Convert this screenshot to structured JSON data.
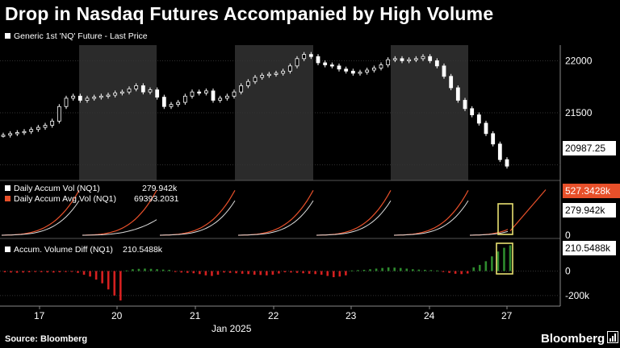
{
  "title": "Drop in Nasdaq Futures Accompanied by High Volume",
  "source": "Source: Bloomberg",
  "brand": "Bloomberg",
  "colors": {
    "background": "#000000",
    "shade": "#2b2b2b",
    "red_line": "#e8502a",
    "up_bar": "#2e8b2e",
    "down_bar": "#d42020",
    "highlight": "#e8e070"
  },
  "x_axis": {
    "ticks": [
      "17",
      "20",
      "21",
      "22",
      "23",
      "24",
      "27"
    ],
    "month_label": "Jan 2025"
  },
  "chart_data": [
    {
      "type": "candlestick",
      "legend": "Generic 1st 'NQ' Future - Last Price",
      "y_ticks": [
        "22000",
        "21500"
      ],
      "ylim": [
        20850,
        22150
      ],
      "last_value_label": "20987.25",
      "shaded_days": [
        "20",
        "22",
        "24"
      ],
      "close_series": [
        21285,
        21300,
        21310,
        21320,
        21340,
        21360,
        21380,
        21420,
        21560,
        21640,
        21660,
        21620,
        21640,
        21650,
        21660,
        21670,
        21690,
        21700,
        21730,
        21760,
        21700,
        21720,
        21650,
        21560,
        21580,
        21600,
        21660,
        21700,
        21690,
        21710,
        21620,
        21640,
        21660,
        21700,
        21760,
        21800,
        21840,
        21860,
        21870,
        21880,
        21900,
        21950,
        22020,
        22060,
        22040,
        21980,
        21960,
        21950,
        21920,
        21900,
        21880,
        21890,
        21910,
        21930,
        21960,
        22010,
        22020,
        22000,
        22010,
        22020,
        22040,
        22000,
        21950,
        21850,
        21740,
        21620,
        21540,
        21480,
        21400,
        21300,
        21200,
        21050,
        20987.25
      ]
    },
    {
      "type": "line",
      "series": [
        {
          "name": "Daily Accum Vol (NQ1)",
          "value_label": "279.942k"
        },
        {
          "name": "Daily Accum Avg Vol (NQ1)",
          "value_label": "69393.2031"
        }
      ],
      "y_ticks": [
        "0"
      ],
      "right_labels": [
        "527.3428k",
        "279.942k"
      ],
      "ylim": [
        0,
        560000
      ]
    },
    {
      "type": "bar",
      "legend": "Accum. Volume Diff (NQ1)",
      "legend_value": "210.5488k",
      "y_ticks": [
        "0",
        "-200k"
      ],
      "right_label": "210.5488k",
      "ylim": [
        -260000,
        240000
      ],
      "values": [
        -10000,
        -12000,
        -14000,
        -12000,
        -10000,
        -8000,
        -9000,
        -11000,
        -12000,
        -10000,
        -8000,
        -7000,
        -15000,
        -30000,
        -45000,
        -70000,
        -100000,
        -150000,
        -200000,
        -240000,
        5000,
        15000,
        18000,
        20000,
        18000,
        15000,
        12000,
        10000,
        -8000,
        -12000,
        -15000,
        -18000,
        -25000,
        -35000,
        -40000,
        -30000,
        -12000,
        -15000,
        -18000,
        -22000,
        -25000,
        -30000,
        -32000,
        -35000,
        -30000,
        -20000,
        -10000,
        -12000,
        -15000,
        -18000,
        -22000,
        -25000,
        -30000,
        -40000,
        -50000,
        -45000,
        -35000,
        5000,
        8000,
        10000,
        15000,
        20000,
        25000,
        30000,
        28000,
        25000,
        20000,
        15000,
        12000,
        10000,
        8000,
        5000,
        -8000,
        -15000,
        -22000,
        -25000,
        -20000,
        30000,
        50000,
        80000,
        120000,
        160000,
        190000,
        210549
      ]
    }
  ]
}
